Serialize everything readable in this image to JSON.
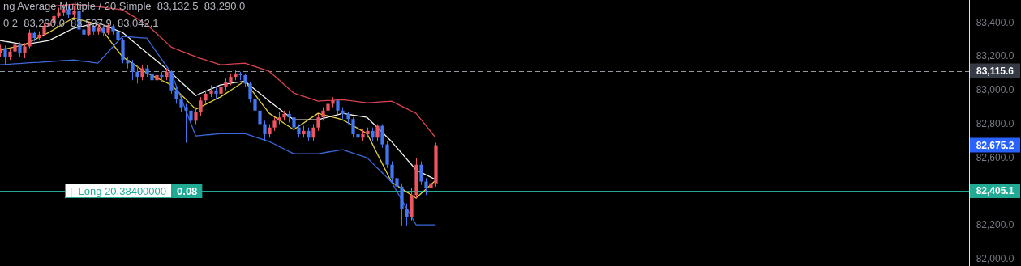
{
  "chart_data": {
    "type": "candlestick",
    "categories": [
      null,
      null,
      null,
      null,
      null,
      null,
      null,
      null,
      null,
      null,
      null,
      null,
      null,
      null,
      null,
      null,
      null,
      null,
      null,
      null,
      null,
      null,
      null,
      null,
      null,
      null,
      null,
      null,
      null,
      null,
      null,
      null,
      null,
      null,
      null,
      null,
      null,
      null,
      null,
      null,
      null,
      null,
      null,
      null,
      null,
      null,
      null,
      null,
      null,
      null,
      null,
      null,
      null,
      null,
      null,
      null,
      null,
      null,
      null,
      null,
      null,
      null,
      null,
      null,
      null,
      null,
      null,
      null,
      null,
      null,
      null,
      null,
      null,
      null,
      null,
      null,
      null,
      null,
      null,
      null,
      null,
      null,
      null,
      null,
      null,
      null,
      null,
      null,
      null,
      null,
      null,
      null,
      null,
      null,
      null,
      null,
      null,
      null,
      null,
      null,
      null,
      null,
      null,
      null,
      null,
      null,
      null,
      null,
      null,
      null,
      null,
      null,
      null,
      null,
      null,
      null,
      null,
      null,
      null,
      null,
      null,
      null,
      null,
      null,
      null,
      null,
      null,
      null,
      null,
      null,
      null,
      null,
      null,
      null,
      null,
      null,
      null,
      null,
      null,
      null,
      null,
      null,
      null,
      null,
      null,
      null,
      null,
      null,
      null,
      null,
      null,
      null,
      null,
      null,
      null,
      null,
      null,
      null,
      null,
      null,
      null,
      null,
      null,
      null,
      null,
      null,
      null,
      null,
      null,
      null,
      null,
      null,
      null,
      null,
      null,
      null,
      null,
      null,
      null,
      null,
      null,
      null,
      null,
      null,
      null,
      null,
      null,
      null,
      null,
      null,
      null,
      null,
      null,
      null,
      null,
      null,
      null,
      null,
      null
    ],
    "ohlc": [
      [
        83220,
        83270,
        83200,
        83250
      ],
      [
        83250,
        83265,
        83150,
        83200
      ],
      [
        83200,
        83250,
        83180,
        83230
      ],
      [
        83230,
        83300,
        83210,
        83270
      ],
      [
        83270,
        83285,
        83200,
        83220
      ],
      [
        83220,
        83280,
        83190,
        83260
      ],
      [
        83260,
        83360,
        83250,
        83340
      ],
      [
        83340,
        83350,
        83290,
        83310
      ],
      [
        83310,
        83350,
        83300,
        83330
      ],
      [
        83330,
        83400,
        83320,
        83380
      ],
      [
        83380,
        83420,
        83360,
        83400
      ],
      [
        83400,
        83470,
        83390,
        83440
      ],
      [
        83440,
        83490,
        83430,
        83460
      ],
      [
        83460,
        83510,
        83440,
        83480
      ],
      [
        83480,
        83500,
        83430,
        83450
      ],
      [
        83450,
        83500,
        83430,
        83470
      ],
      [
        83470,
        83480,
        83340,
        83360
      ],
      [
        83360,
        83380,
        83300,
        83330
      ],
      [
        83330,
        83400,
        83320,
        83380
      ],
      [
        83380,
        83390,
        83330,
        83350
      ],
      [
        83350,
        83390,
        83330,
        83370
      ],
      [
        83370,
        83390,
        83320,
        83340
      ],
      [
        83340,
        83400,
        83330,
        83380
      ],
      [
        83380,
        83390,
        83330,
        83350
      ],
      [
        83350,
        83360,
        83280,
        83300
      ],
      [
        83300,
        83310,
        83160,
        83180
      ],
      [
        83180,
        83200,
        83130,
        83160
      ],
      [
        83160,
        83180,
        83060,
        83110
      ],
      [
        83110,
        83150,
        83040,
        83080
      ],
      [
        83080,
        83150,
        83060,
        83130
      ],
      [
        83130,
        83150,
        83080,
        83100
      ],
      [
        83100,
        83120,
        83040,
        83060
      ],
      [
        83060,
        83110,
        83040,
        83090
      ],
      [
        83090,
        83110,
        83050,
        83080
      ],
      [
        83080,
        83130,
        83060,
        83110
      ],
      [
        83110,
        83120,
        82980,
        83000
      ],
      [
        83000,
        83020,
        82920,
        82950
      ],
      [
        82950,
        82970,
        82870,
        82900
      ],
      [
        82900,
        82920,
        82690,
        82880
      ],
      [
        82880,
        82900,
        82790,
        82820
      ],
      [
        82820,
        82900,
        82800,
        82870
      ],
      [
        82870,
        82960,
        82850,
        82940
      ],
      [
        82940,
        83000,
        82920,
        82980
      ],
      [
        82980,
        83030,
        82960,
        83000
      ],
      [
        83000,
        83020,
        82950,
        82980
      ],
      [
        82980,
        83040,
        82960,
        83020
      ],
      [
        83020,
        83070,
        83000,
        83050
      ],
      [
        83050,
        83100,
        83030,
        83080
      ],
      [
        83080,
        83120,
        83060,
        83100
      ],
      [
        83100,
        83110,
        83060,
        83090
      ],
      [
        83090,
        83100,
        83020,
        83040
      ],
      [
        83040,
        83050,
        82930,
        82950
      ],
      [
        82950,
        82960,
        82860,
        82880
      ],
      [
        82880,
        82900,
        82770,
        82800
      ],
      [
        82800,
        82820,
        82700,
        82740
      ],
      [
        82740,
        82800,
        82720,
        82780
      ],
      [
        82780,
        82840,
        82760,
        82820
      ],
      [
        82820,
        82870,
        82800,
        82840
      ],
      [
        82840,
        82880,
        82820,
        82860
      ],
      [
        82860,
        82880,
        82810,
        82840
      ],
      [
        82840,
        82850,
        82750,
        82780
      ],
      [
        82780,
        82800,
        82720,
        82740
      ],
      [
        82740,
        82790,
        82720,
        82760
      ],
      [
        82760,
        82780,
        82700,
        82720
      ],
      [
        82720,
        82800,
        82700,
        82780
      ],
      [
        82780,
        82860,
        82760,
        82840
      ],
      [
        82840,
        82900,
        82820,
        82880
      ],
      [
        82880,
        82950,
        82860,
        82920
      ],
      [
        82920,
        82960,
        82900,
        82940
      ],
      [
        82940,
        82950,
        82860,
        82880
      ],
      [
        82880,
        82900,
        82830,
        82860
      ],
      [
        82860,
        82870,
        82800,
        82830
      ],
      [
        82830,
        82840,
        82720,
        82740
      ],
      [
        82740,
        82770,
        82700,
        82720
      ],
      [
        82720,
        82770,
        82700,
        82740
      ],
      [
        82740,
        82780,
        82720,
        82760
      ],
      [
        82760,
        82780,
        82700,
        82720
      ],
      [
        82720,
        82800,
        82700,
        82790
      ],
      [
        82790,
        82800,
        82660,
        82680
      ],
      [
        82680,
        82700,
        82540,
        82560
      ],
      [
        82560,
        82580,
        82450,
        82480
      ],
      [
        82480,
        82500,
        82400,
        82430
      ],
      [
        82430,
        82450,
        82200,
        82300
      ],
      [
        82300,
        82330,
        82200,
        82250
      ],
      [
        82250,
        82420,
        82230,
        82380
      ],
      [
        82380,
        82600,
        82360,
        82560
      ],
      [
        82560,
        82580,
        82440,
        82460
      ],
      [
        82460,
        82480,
        82380,
        82420
      ],
      [
        82420,
        82480,
        82400,
        82450
      ],
      [
        82450,
        82690,
        82430,
        82675
      ],
      null,
      null,
      null,
      null,
      null,
      null,
      null,
      null,
      null,
      null,
      null,
      null,
      null,
      null,
      null,
      null,
      null,
      null,
      null,
      null,
      null,
      null,
      null,
      null,
      null,
      null,
      null,
      null,
      null,
      null,
      null,
      null,
      null,
      null,
      null,
      null,
      null,
      null,
      null,
      null,
      null,
      null,
      null,
      null,
      null,
      null,
      null,
      null,
      null,
      null,
      null,
      null,
      null,
      null,
      null,
      null,
      null,
      null,
      null,
      null,
      null,
      null,
      null,
      null,
      null,
      null,
      null,
      null,
      null,
      null,
      null,
      null,
      null,
      null,
      null,
      null,
      null,
      null,
      null,
      null,
      null,
      null,
      null,
      null,
      null,
      null,
      null,
      null,
      null,
      null,
      null,
      null,
      null,
      null,
      null,
      null,
      null,
      null,
      null,
      null,
      null,
      null,
      null,
      null,
      null,
      null,
      null,
      null,
      null
    ],
    "colors": [
      "#f05461",
      "#4177f0",
      "#f05461",
      "#f05461",
      "#4177f0",
      "#f05461",
      "#f05461",
      "#4177f0",
      "#f05461",
      "#f05461",
      "#f05461",
      "#f05461",
      "#f05461",
      "#f05461",
      "#4177f0",
      "#f05461",
      "#4177f0",
      "#4177f0",
      "#f05461",
      "#4177f0",
      "#f05461",
      "#4177f0",
      "#f05461",
      "#4177f0",
      "#4177f0",
      "#4177f0",
      "#4177f0",
      "#4177f0",
      "#4177f0",
      "#f05461",
      "#4177f0",
      "#4177f0",
      "#f05461",
      "#4177f0",
      "#f05461",
      "#4177f0",
      "#4177f0",
      "#4177f0",
      "#4177f0",
      "#4177f0",
      "#f05461",
      "#f05461",
      "#f05461",
      "#f05461",
      "#4177f0",
      "#f05461",
      "#f05461",
      "#f05461",
      "#f05461",
      "#4177f0",
      "#4177f0",
      "#4177f0",
      "#4177f0",
      "#4177f0",
      "#4177f0",
      "#f05461",
      "#f05461",
      "#f05461",
      "#f05461",
      "#4177f0",
      "#4177f0",
      "#4177f0",
      "#f05461",
      "#4177f0",
      "#f05461",
      "#f05461",
      "#f05461",
      "#f05461",
      "#f05461",
      "#4177f0",
      "#4177f0",
      "#4177f0",
      "#4177f0",
      "#4177f0",
      "#f05461",
      "#f05461",
      "#4177f0",
      "#f05461",
      "#4177f0",
      "#4177f0",
      "#4177f0",
      "#4177f0",
      "#4177f0",
      "#4177f0",
      "#f05461",
      "#f05461",
      "#4177f0",
      "#4177f0",
      "#f05461",
      "#f05461",
      null,
      null,
      null,
      null,
      null,
      null,
      null,
      null,
      null,
      null,
      null,
      null,
      null,
      null,
      null,
      null,
      null,
      null,
      null,
      null,
      null,
      null,
      null,
      null,
      null,
      null,
      null,
      null,
      null,
      null,
      null,
      null,
      null,
      null,
      null,
      null,
      null,
      null,
      null,
      null,
      null,
      null,
      null,
      null,
      null,
      null,
      null,
      null,
      null,
      null,
      null,
      null,
      null,
      null,
      null,
      null,
      null,
      null,
      null,
      null,
      null,
      null,
      null,
      null,
      null,
      null,
      null,
      null,
      null,
      null,
      null,
      null,
      null,
      null,
      null,
      null,
      null,
      null,
      null,
      null,
      null,
      null,
      null,
      null,
      null,
      null,
      null,
      null,
      null,
      null,
      null,
      null,
      null,
      null,
      null,
      null,
      null,
      null,
      null,
      null,
      null,
      null,
      null,
      null,
      null,
      null,
      null,
      null,
      null
    ],
    "series": [
      {
        "type": "line",
        "color": "#d8434f",
        "values": [
          null,
          null,
          null,
          null,
          null,
          null,
          null,
          null,
          null,
          null,
          83496,
          83499,
          83502,
          83504,
          83507,
          83510,
          83507,
          83504,
          83502,
          83499,
          83496,
          83492,
          83488,
          83485,
          83481,
          83477,
          83460,
          83442,
          83425,
          83407,
          83390,
          83363,
          83336,
          83310,
          83283,
          83256,
          83245,
          83233,
          83222,
          83210,
          83199,
          83189,
          83180,
          83170,
          83161,
          83151,
          83153,
          83155,
          83157,
          83159,
          83161,
          83151,
          83142,
          83132,
          83123,
          83113,
          83087,
          83062,
          83036,
          83010,
          82984,
          82974,
          82965,
          82955,
          82946,
          82936,
          82938,
          82940,
          82941,
          82943,
          82945,
          82941,
          82937,
          82934,
          82930,
          82926,
          82928,
          82930,
          82932,
          82934,
          82936,
          82922,
          82907,
          82893,
          82878,
          82864,
          82828,
          82792,
          82756,
          82720,
          null,
          null,
          null,
          null,
          null,
          null,
          null,
          null,
          null,
          null,
          null,
          null,
          null,
          null,
          null,
          null,
          null,
          null,
          null,
          null,
          null,
          null,
          null,
          null,
          null,
          null,
          null,
          null,
          null,
          null,
          null,
          null,
          null,
          null,
          null,
          null,
          null,
          null,
          null,
          null,
          null,
          null,
          null,
          null,
          null,
          null,
          null,
          null,
          null,
          null,
          null,
          null,
          null,
          null,
          null,
          null,
          null,
          null,
          null,
          null,
          null,
          null,
          null,
          null,
          null,
          null,
          null,
          null,
          null,
          null,
          null,
          null,
          null,
          null,
          null,
          null,
          null,
          null,
          null,
          null,
          null,
          null,
          null,
          null,
          null,
          null,
          null,
          null,
          null,
          null,
          null,
          null,
          null,
          null,
          null,
          null,
          null,
          null,
          null,
          null,
          null,
          null,
          null,
          null,
          null,
          null,
          null,
          null,
          null
        ]
      },
      {
        "type": "line",
        "color": "#3d68d8",
        "values": [
          83151,
          83153,
          83155,
          83157,
          83159,
          83161,
          83163,
          83165,
          83166,
          83168,
          83170,
          83172,
          83174,
          83176,
          83178,
          83180,
          83176,
          83172,
          83169,
          83165,
          83161,
          83193,
          83224,
          83256,
          83287,
          83319,
          83317,
          83315,
          83313,
          83311,
          83309,
          83268,
          83227,
          83185,
          83144,
          83103,
          83028,
          82954,
          82879,
          82805,
          82730,
          82733,
          82736,
          82738,
          82741,
          82744,
          82744,
          82744,
          82744,
          82744,
          82744,
          82735,
          82725,
          82716,
          82706,
          82697,
          82683,
          82668,
          82654,
          82639,
          82625,
          82625,
          82625,
          82625,
          82625,
          82625,
          82630,
          82635,
          82639,
          82644,
          82649,
          82639,
          82630,
          82620,
          82611,
          82601,
          82572,
          82543,
          82515,
          82486,
          82457,
          82406,
          82356,
          82305,
          82255,
          82204,
          82204,
          82204,
          82204,
          82204,
          null,
          null,
          null,
          null,
          null,
          null,
          null,
          null,
          null,
          null,
          null,
          null,
          null,
          null,
          null,
          null,
          null,
          null,
          null,
          null,
          null,
          null,
          null,
          null,
          null,
          null,
          null,
          null,
          null,
          null,
          null,
          null,
          null,
          null,
          null,
          null,
          null,
          null,
          null,
          null,
          null,
          null,
          null,
          null,
          null,
          null,
          null,
          null,
          null,
          null,
          null,
          null,
          null,
          null,
          null,
          null,
          null,
          null,
          null,
          null,
          null,
          null,
          null,
          null,
          null,
          null,
          null,
          null,
          null,
          null,
          null,
          null,
          null,
          null,
          null,
          null,
          null,
          null,
          null,
          null,
          null,
          null,
          null,
          null,
          null,
          null,
          null,
          null,
          null,
          null,
          null,
          null,
          null,
          null,
          null,
          null,
          null,
          null,
          null,
          null,
          null,
          null,
          null,
          null,
          null,
          null,
          null,
          null,
          null
        ]
      },
      {
        "type": "line",
        "color": "#f0f0f0",
        "values": [
          83295,
          83290,
          83286,
          83281,
          83276,
          83271,
          83276,
          83281,
          83285,
          83290,
          83295,
          83309,
          83324,
          83338,
          83353,
          83367,
          83374,
          83380,
          83387,
          83393,
          83400,
          83389,
          83377,
          83366,
          83354,
          83343,
          83319,
          83295,
          83271,
          83247,
          83223,
          83199,
          83175,
          83151,
          83127,
          83103,
          83076,
          83049,
          83023,
          82996,
          82969,
          82982,
          82994,
          83007,
          83019,
          83032,
          83037,
          83041,
          83046,
          83050,
          83055,
          83031,
          83007,
          82984,
          82960,
          82936,
          82914,
          82892,
          82870,
          82848,
          82826,
          82826,
          82826,
          82826,
          82826,
          82826,
          82834,
          82841,
          82849,
          82856,
          82864,
          82859,
          82854,
          82850,
          82845,
          82840,
          82811,
          82783,
          82754,
          82726,
          82697,
          82663,
          82630,
          82596,
          82563,
          82529,
          82515,
          82500,
          82486,
          82472,
          null,
          null,
          null,
          null,
          null,
          null,
          null,
          null,
          null,
          null,
          null,
          null,
          null,
          null,
          null,
          null,
          null,
          null,
          null,
          null,
          null,
          null,
          null,
          null,
          null,
          null,
          null,
          null,
          null,
          null,
          null,
          null,
          null,
          null,
          null,
          null,
          null,
          null,
          null,
          null,
          null,
          null,
          null,
          null,
          null,
          null,
          null,
          null,
          null,
          null,
          null,
          null,
          null,
          null,
          null,
          null,
          null,
          null,
          null,
          null,
          null,
          null,
          null,
          null,
          null,
          null,
          null,
          null,
          null,
          null,
          null,
          null,
          null,
          null,
          null,
          null,
          null,
          null,
          null,
          null,
          null,
          null,
          null,
          null,
          null,
          null,
          null,
          null,
          null,
          null,
          null,
          null,
          null,
          null,
          null,
          null,
          null,
          null,
          null,
          null,
          null,
          null,
          null,
          null,
          null,
          null,
          null,
          null,
          null
        ]
      },
      {
        "type": "line",
        "color": "#e3cf3c",
        "values": [
          83237,
          83244,
          83251,
          83257,
          83264,
          83271,
          83285,
          83300,
          83314,
          83329,
          83343,
          83360,
          83377,
          83395,
          83412,
          83429,
          83421,
          83413,
          83406,
          83398,
          83390,
          83352,
          83314,
          83275,
          83237,
          83199,
          83180,
          83161,
          83141,
          83122,
          83103,
          83089,
          83075,
          83060,
          83046,
          83032,
          83003,
          82974,
          82946,
          82917,
          82888,
          82902,
          82917,
          82931,
          82946,
          82960,
          82979,
          82998,
          83017,
          83036,
          83055,
          83017,
          82979,
          82940,
          82902,
          82864,
          82845,
          82826,
          82806,
          82787,
          82768,
          82787,
          82806,
          82826,
          82845,
          82864,
          82856,
          82849,
          82841,
          82834,
          82826,
          82810,
          82793,
          82777,
          82760,
          82744,
          82687,
          82629,
          82572,
          82514,
          82457,
          82438,
          82419,
          82400,
          82381,
          82362,
          82388,
          82414,
          82441,
          82467,
          null,
          null,
          null,
          null,
          null,
          null,
          null,
          null,
          null,
          null,
          null,
          null,
          null,
          null,
          null,
          null,
          null,
          null,
          null,
          null,
          null,
          null,
          null,
          null,
          null,
          null,
          null,
          null,
          null,
          null,
          null,
          null,
          null,
          null,
          null,
          null,
          null,
          null,
          null,
          null,
          null,
          null,
          null,
          null,
          null,
          null,
          null,
          null,
          null,
          null,
          null,
          null,
          null,
          null,
          null,
          null,
          null,
          null,
          null,
          null,
          null,
          null,
          null,
          null,
          null,
          null,
          null,
          null,
          null,
          null,
          null,
          null,
          null,
          null,
          null,
          null,
          null,
          null,
          null,
          null,
          null,
          null,
          null,
          null,
          null,
          null,
          null,
          null,
          null,
          null,
          null,
          null,
          null,
          null,
          null,
          null,
          null,
          null,
          null,
          null,
          null,
          null,
          null,
          null,
          null,
          null,
          null,
          null,
          null
        ]
      }
    ],
    "ylim": [
      81960,
      83535
    ],
    "yticks": [
      {
        "value": 82000,
        "label": "82,000.0"
      },
      {
        "value": 82200,
        "label": "82,200.0"
      },
      {
        "value": 82400,
        "label": null
      },
      {
        "value": 82600,
        "label": "82,600.0"
      },
      {
        "value": 82800,
        "label": "82,800.0"
      },
      {
        "value": 83000,
        "label": "83,000.0"
      },
      {
        "value": 83200,
        "label": "83,200.0"
      },
      {
        "value": 83400,
        "label": "83,400.0"
      }
    ],
    "tick_labels": "y",
    "ref_lines": [
      {
        "axis": "y",
        "value": 83115.6,
        "label": "83,115.6",
        "color": "#9598a1",
        "line_style": "dashed"
      },
      {
        "axis": "y",
        "value": 82675.2,
        "label": "82,675.2",
        "color": "#2962ff",
        "line_style": "dotted"
      },
      {
        "axis": "y",
        "value": 82405.1,
        "label": "82,405.1",
        "color": "#22ab94",
        "line_style": "solid"
      }
    ],
    "annotations": [
      "ng Average Multiple / 20 Simple  83,132.5  83,290.0",
      "0 2  83,290.0  83,537.9  83,042.1",
      {
        "text": "|  Long 20.38400000",
        "y": 82405.1
      },
      {
        "text": "0.08",
        "y": 82405.1
      }
    ]
  }
}
